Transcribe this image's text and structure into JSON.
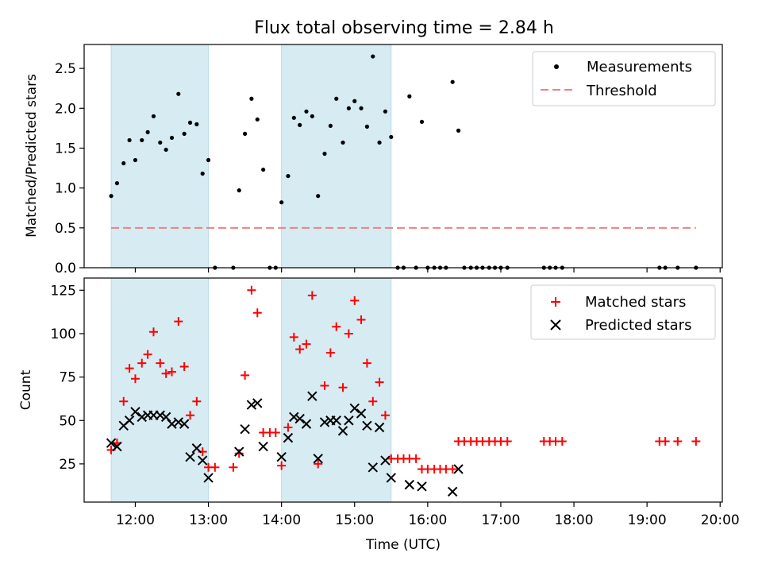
{
  "figure": {
    "title": "Flux total observing time = 2.84 h"
  },
  "chart_data": [
    {
      "type": "scatter",
      "title": "Flux total observing time = 2.84 h",
      "xlabel": "",
      "ylabel": "Matched/Predicted stars",
      "xlim_hours": [
        11.3,
        20.03
      ],
      "ylim": [
        0,
        2.8
      ],
      "yticks": [
        "0.0",
        "0.5",
        "1.0",
        "1.5",
        "2.0",
        "2.5"
      ],
      "ytick_values": [
        0.0,
        0.5,
        1.0,
        1.5,
        2.0,
        2.5
      ],
      "legend": {
        "placement": "top-right",
        "entries": [
          "Measurements",
          "Threshold"
        ]
      },
      "colors": {
        "measurements": "#000000",
        "threshold": "#f08080",
        "band": "#add8e6"
      },
      "shaded_intervals_hours": [
        [
          11.67,
          13.0
        ],
        [
          14.0,
          15.5
        ]
      ],
      "threshold": {
        "name": "Threshold",
        "value": 0.5,
        "x_range_hours": [
          11.67,
          19.67
        ]
      },
      "series": [
        {
          "name": "Measurements",
          "x_hours": [
            11.67,
            11.75,
            11.84,
            11.92,
            12.0,
            12.09,
            12.17,
            12.25,
            12.34,
            12.42,
            12.5,
            12.59,
            12.67,
            12.75,
            12.84,
            12.92,
            13.0,
            13.09,
            13.34,
            13.42,
            13.5,
            13.59,
            13.67,
            13.75,
            13.84,
            13.92,
            14.0,
            14.09,
            14.17,
            14.25,
            14.34,
            14.42,
            14.5,
            14.59,
            14.67,
            14.75,
            14.84,
            14.92,
            15.0,
            15.09,
            15.17,
            15.25,
            15.34,
            15.42,
            15.5,
            15.59,
            15.67,
            15.75,
            15.84,
            15.92,
            16.0,
            16.09,
            16.17,
            16.25,
            16.34,
            16.42,
            16.5,
            16.59,
            16.67,
            16.75,
            16.84,
            16.92,
            17.0,
            17.09,
            17.59,
            17.67,
            17.75,
            17.84,
            19.17,
            19.25,
            19.42,
            19.67
          ],
          "y": [
            0.9,
            1.06,
            1.31,
            1.6,
            1.35,
            1.6,
            1.7,
            1.9,
            1.57,
            1.48,
            1.63,
            2.18,
            1.68,
            1.82,
            1.8,
            1.18,
            1.35,
            0.0,
            0.0,
            0.97,
            1.68,
            2.12,
            1.86,
            1.23,
            0.0,
            0.0,
            0.82,
            1.15,
            1.88,
            1.79,
            1.96,
            1.9,
            0.9,
            1.43,
            1.78,
            2.12,
            1.57,
            2.0,
            2.09,
            2.0,
            1.77,
            2.65,
            1.57,
            1.96,
            1.64,
            0.0,
            0.0,
            2.15,
            0.0,
            1.83,
            0.0,
            0.0,
            0.0,
            0.0,
            2.33,
            1.72,
            0.0,
            0.0,
            0.0,
            0.0,
            0.0,
            0.0,
            0.0,
            0.0,
            0.0,
            0.0,
            0.0,
            0.0,
            0.0,
            0.0,
            0.0,
            0.0
          ]
        }
      ]
    },
    {
      "type": "scatter",
      "title": "",
      "xlabel": "Time (UTC)",
      "ylabel": "Count",
      "xlim_hours": [
        11.3,
        20.03
      ],
      "ylim": [
        3,
        132
      ],
      "yticks": [
        "25",
        "50",
        "75",
        "100",
        "125"
      ],
      "ytick_values": [
        25,
        50,
        75,
        100,
        125
      ],
      "xticks": [
        "12:00",
        "13:00",
        "14:00",
        "15:00",
        "16:00",
        "17:00",
        "18:00",
        "19:00",
        "20:00"
      ],
      "xtick_hours": [
        12,
        13,
        14,
        15,
        16,
        17,
        18,
        19,
        20
      ],
      "legend": {
        "placement": "top-right",
        "entries": [
          "Matched stars",
          "Predicted stars"
        ]
      },
      "colors": {
        "matched": "#ff0000",
        "predicted": "#000000",
        "band": "#add8e6"
      },
      "shaded_intervals_hours": [
        [
          11.67,
          13.0
        ],
        [
          14.0,
          15.5
        ]
      ],
      "series": [
        {
          "name": "Matched stars",
          "marker": "plus",
          "x_hours": [
            11.67,
            11.75,
            11.84,
            11.92,
            12.0,
            12.09,
            12.17,
            12.25,
            12.34,
            12.42,
            12.5,
            12.59,
            12.67,
            12.75,
            12.84,
            12.92,
            13.0,
            13.09,
            13.34,
            13.42,
            13.5,
            13.59,
            13.67,
            13.75,
            13.84,
            13.92,
            14.0,
            14.09,
            14.17,
            14.25,
            14.34,
            14.42,
            14.5,
            14.59,
            14.67,
            14.75,
            14.84,
            14.92,
            15.0,
            15.09,
            15.17,
            15.25,
            15.34,
            15.42,
            15.5,
            15.59,
            15.67,
            15.75,
            15.84,
            15.92,
            16.0,
            16.09,
            16.17,
            16.25,
            16.34,
            16.42,
            16.5,
            16.59,
            16.67,
            16.75,
            16.84,
            16.92,
            17.0,
            17.09,
            17.59,
            17.67,
            17.75,
            17.84,
            19.17,
            19.25,
            19.42,
            19.67
          ],
          "y": [
            33,
            37,
            61,
            80,
            74,
            83,
            88,
            101,
            83,
            77,
            78,
            107,
            81,
            53,
            61,
            32,
            23,
            23,
            23,
            31,
            76,
            125,
            112,
            43,
            43,
            43,
            24,
            46,
            98,
            91,
            94,
            122,
            25,
            70,
            89,
            104,
            69,
            100,
            119,
            108,
            83,
            61,
            72,
            53,
            28,
            28,
            28,
            28,
            28,
            22,
            22,
            22,
            22,
            22,
            22,
            38,
            38,
            38,
            38,
            38,
            38,
            38,
            38,
            38,
            38,
            38,
            38,
            38,
            38,
            38,
            38,
            38
          ]
        },
        {
          "name": "Predicted stars",
          "marker": "x",
          "x_hours": [
            11.67,
            11.75,
            11.84,
            11.92,
            12.0,
            12.09,
            12.17,
            12.25,
            12.34,
            12.42,
            12.5,
            12.59,
            12.67,
            12.75,
            12.84,
            12.92,
            13.0,
            13.42,
            13.5,
            13.59,
            13.67,
            13.75,
            14.0,
            14.09,
            14.17,
            14.25,
            14.34,
            14.42,
            14.5,
            14.59,
            14.67,
            14.75,
            14.84,
            14.92,
            15.0,
            15.09,
            15.17,
            15.25,
            15.34,
            15.42,
            15.5,
            15.75,
            15.92,
            16.34,
            16.42
          ],
          "y": [
            37,
            35,
            47,
            50,
            55,
            52,
            53,
            53,
            53,
            52,
            48,
            49,
            48,
            29,
            34,
            27,
            17,
            32,
            45,
            59,
            60,
            35,
            29,
            40,
            52,
            51,
            48,
            64,
            28,
            49,
            50,
            50,
            44,
            50,
            57,
            54,
            47,
            23,
            46,
            27,
            17,
            13,
            12,
            9,
            22
          ]
        }
      ]
    }
  ]
}
